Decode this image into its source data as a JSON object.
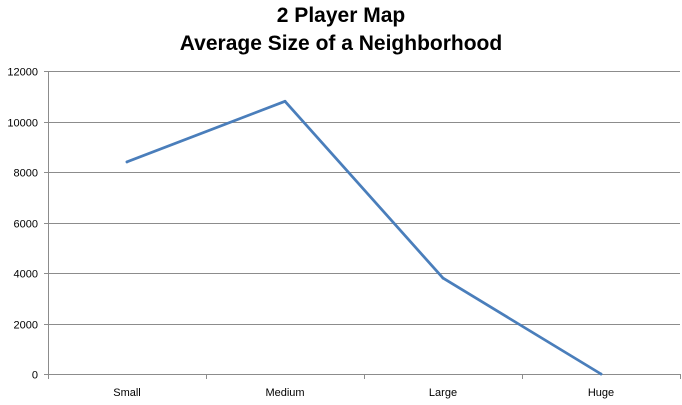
{
  "chart_data": {
    "type": "line",
    "title": "2 Player Map",
    "subtitle": "Average Size of a Neighborhood",
    "xlabel": "",
    "ylabel": "",
    "categories": [
      "Small",
      "Medium",
      "Large",
      "Huge"
    ],
    "series": [
      {
        "values": [
          8400,
          10800,
          3800,
          0
        ],
        "color": "#4a7ebb"
      }
    ],
    "ylim": [
      0,
      12000
    ],
    "yticks": [
      0,
      2000,
      4000,
      6000,
      8000,
      10000,
      12000
    ],
    "grid": true,
    "legend": "none"
  }
}
